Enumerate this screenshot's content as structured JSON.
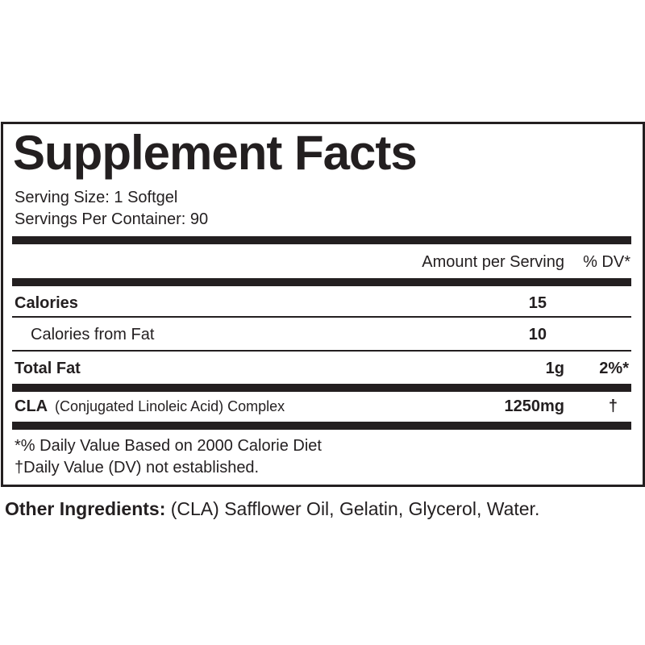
{
  "title": "Supplement Facts",
  "serving_size": "Serving Size: 1 Softgel",
  "servings_per_container": "Servings Per Container: 90",
  "header": {
    "amount": "Amount per Serving",
    "dv": "% DV*"
  },
  "rows": [
    {
      "name": "Calories",
      "amount": "15"
    },
    {
      "name": "Calories from Fat",
      "amount": "10"
    },
    {
      "name": "Total Fat",
      "amount": "1g",
      "dv": "2%*"
    },
    {
      "name": "CLA",
      "description": "(Conjugated Linoleic Acid) Complex",
      "amount": "1250mg",
      "dv": "†"
    }
  ],
  "footnotes": [
    "*% Daily Value Based on 2000 Calorie Diet",
    "†Daily Value (DV) not established."
  ],
  "other_ingredients": {
    "label": "Other Ingredients:",
    "text": "(CLA) Safflower Oil, Gelatin, Glycerol, Water."
  }
}
